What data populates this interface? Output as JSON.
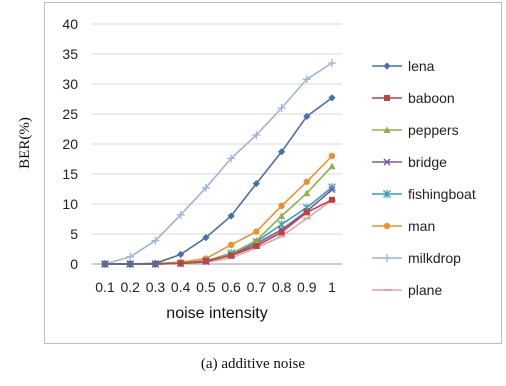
{
  "caption": "(a) additive noise",
  "chart_data": {
    "type": "line",
    "xlabel": "noise intensity",
    "ylabel": "BER(%)",
    "x": [
      "0.1",
      "0.2",
      "0.3",
      "0.4",
      "0.5",
      "0.6",
      "0.7",
      "0.8",
      "0.9",
      "1"
    ],
    "ylim": [
      0,
      40
    ],
    "yticks": [
      0,
      5,
      10,
      15,
      20,
      25,
      30,
      35,
      40
    ],
    "grid": true,
    "legend_position": "right",
    "series": [
      {
        "name": "lena",
        "color": "#4a6fa5",
        "marker": "diamond",
        "values": [
          0,
          0,
          0.1,
          1.6,
          4.4,
          8.0,
          13.4,
          18.7,
          24.6,
          27.7
        ]
      },
      {
        "name": "baboon",
        "color": "#b24745",
        "marker": "square",
        "values": [
          0,
          0,
          0,
          0.1,
          0.5,
          1.4,
          3.0,
          5.3,
          8.6,
          10.7
        ]
      },
      {
        "name": "peppers",
        "color": "#8fb04a",
        "marker": "triangle",
        "values": [
          0,
          0,
          0,
          0.1,
          0.5,
          1.7,
          3.9,
          8.0,
          11.8,
          16.3
        ]
      },
      {
        "name": "bridge",
        "color": "#7a5a9a",
        "marker": "x",
        "values": [
          0,
          0,
          0,
          0.1,
          0.4,
          1.5,
          3.4,
          5.7,
          8.8,
          12.4
        ]
      },
      {
        "name": "fishingboat",
        "color": "#3d9fb0",
        "marker": "star",
        "values": [
          0,
          0,
          0,
          0.1,
          0.5,
          1.8,
          3.7,
          6.6,
          9.4,
          12.8
        ]
      },
      {
        "name": "man",
        "color": "#e8913a",
        "marker": "circle",
        "values": [
          0,
          0,
          0.1,
          0.3,
          0.9,
          3.2,
          5.4,
          9.7,
          13.7,
          18.0
        ]
      },
      {
        "name": "milkdrop",
        "color": "#9db4d8",
        "marker": "plus",
        "values": [
          0,
          1.2,
          3.9,
          8.2,
          12.7,
          17.6,
          21.5,
          26.0,
          30.8,
          33.5
        ]
      },
      {
        "name": "plane",
        "color": "#e8a0a8",
        "marker": "dash",
        "values": [
          0,
          0,
          0,
          0.1,
          0.3,
          1.0,
          2.7,
          4.6,
          7.6,
          10.6
        ]
      }
    ]
  }
}
